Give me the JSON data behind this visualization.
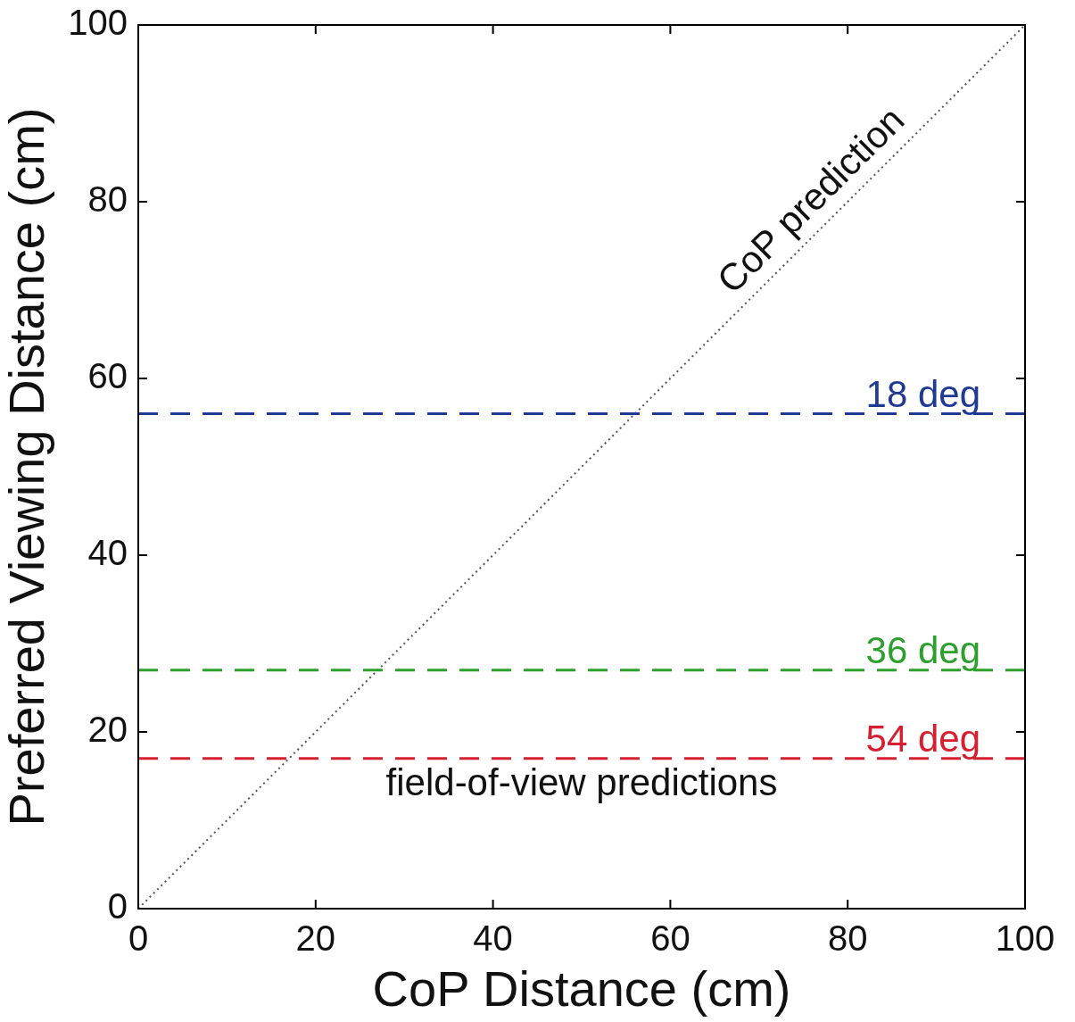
{
  "chart_data": {
    "type": "line",
    "xlabel": "CoP Distance (cm)",
    "ylabel": "Preferred Viewing Distance (cm)",
    "xlim": [
      0,
      100
    ],
    "ylim": [
      0,
      100
    ],
    "xticks": [
      0,
      20,
      40,
      60,
      80,
      100
    ],
    "yticks": [
      0,
      20,
      40,
      60,
      80,
      100
    ],
    "series": [
      {
        "x": [
          0,
          100
        ],
        "values": [
          0,
          100
        ],
        "color": "#555555",
        "line_style": "dotted"
      }
    ],
    "ref_lines": [
      {
        "axis": "y",
        "value": 56,
        "label": "18 deg",
        "color": "#1f3a93",
        "line_style": "dashed"
      },
      {
        "axis": "y",
        "value": 27,
        "label": "36 deg",
        "color": "#2ca02c",
        "line_style": "dashed"
      },
      {
        "axis": "y",
        "value": 17,
        "label": "54 deg",
        "color": "#d62031",
        "line_style": "dashed"
      }
    ],
    "annotations": [
      "CoP prediction",
      "field-of-view predictions"
    ]
  }
}
